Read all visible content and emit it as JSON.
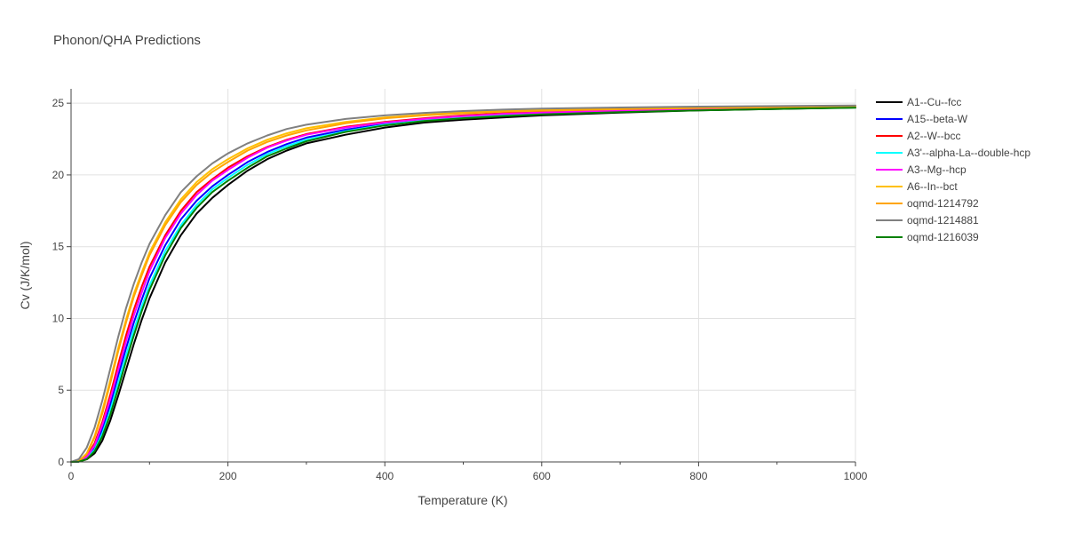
{
  "chart_data": {
    "type": "line",
    "title": "Phonon/QHA Predictions",
    "xlabel": "Temperature (K)",
    "ylabel": "Cv (J/K/mol)",
    "xlim": [
      0,
      1000
    ],
    "ylim": [
      0,
      26
    ],
    "xticks": [
      0,
      200,
      400,
      600,
      800,
      1000
    ],
    "yticks": [
      0,
      5,
      10,
      15,
      20,
      25
    ],
    "x_minor_ticks": [
      100,
      300,
      500,
      700,
      900
    ],
    "grid": true,
    "legend_position": "right",
    "x": [
      0,
      10,
      20,
      30,
      40,
      50,
      60,
      70,
      80,
      90,
      100,
      120,
      140,
      160,
      180,
      200,
      225,
      250,
      275,
      300,
      350,
      400,
      450,
      500,
      550,
      600,
      700,
      800,
      900,
      1000
    ],
    "series": [
      {
        "name": "A1--Cu--fcc",
        "color": "#000000",
        "values": [
          0,
          0.02,
          0.18,
          0.6,
          1.5,
          2.9,
          4.6,
          6.4,
          8.2,
          9.9,
          11.4,
          13.9,
          15.8,
          17.3,
          18.4,
          19.3,
          20.3,
          21.1,
          21.7,
          22.2,
          22.8,
          23.3,
          23.65,
          23.85,
          24.0,
          24.15,
          24.35,
          24.5,
          24.6,
          24.7
        ]
      },
      {
        "name": "A15--beta-W",
        "color": "#0000ff",
        "values": [
          0,
          0.03,
          0.3,
          1.0,
          2.3,
          4.0,
          6.0,
          7.9,
          9.7,
          11.3,
          12.8,
          15.1,
          16.9,
          18.2,
          19.2,
          20.0,
          20.9,
          21.6,
          22.15,
          22.6,
          23.15,
          23.55,
          23.85,
          24.05,
          24.2,
          24.3,
          24.45,
          24.55,
          24.65,
          24.72
        ]
      },
      {
        "name": "A2--W--bcc",
        "color": "#ff0000",
        "values": [
          0,
          0.04,
          0.4,
          1.3,
          2.8,
          4.7,
          6.8,
          8.8,
          10.6,
          12.2,
          13.6,
          15.8,
          17.5,
          18.8,
          19.7,
          20.5,
          21.3,
          21.95,
          22.45,
          22.85,
          23.35,
          23.7,
          23.95,
          24.15,
          24.3,
          24.4,
          24.5,
          24.6,
          24.68,
          24.74
        ]
      },
      {
        "name": "A3'--alpha-La--double-hcp",
        "color": "#00ffff",
        "values": [
          0,
          0.03,
          0.25,
          0.85,
          2.0,
          3.6,
          5.5,
          7.4,
          9.2,
          10.8,
          12.3,
          14.7,
          16.5,
          17.9,
          19.0,
          19.8,
          20.7,
          21.45,
          22.0,
          22.45,
          23.05,
          23.5,
          23.8,
          24.0,
          24.15,
          24.28,
          24.42,
          24.54,
          24.63,
          24.7
        ]
      },
      {
        "name": "A3--Mg--hcp",
        "color": "#ff00ff",
        "values": [
          0,
          0.04,
          0.35,
          1.15,
          2.6,
          4.4,
          6.4,
          8.4,
          10.2,
          11.8,
          13.3,
          15.6,
          17.3,
          18.6,
          19.6,
          20.35,
          21.2,
          21.9,
          22.4,
          22.8,
          23.3,
          23.65,
          23.9,
          24.1,
          24.25,
          24.35,
          24.48,
          24.58,
          24.66,
          24.72
        ]
      },
      {
        "name": "A6--In--bct",
        "color": "#ffc000",
        "values": [
          0,
          0.06,
          0.6,
          1.8,
          3.6,
          5.7,
          7.9,
          9.9,
          11.7,
          13.2,
          14.6,
          16.7,
          18.3,
          19.5,
          20.4,
          21.1,
          21.85,
          22.45,
          22.9,
          23.25,
          23.7,
          24.0,
          24.2,
          24.35,
          24.45,
          24.52,
          24.6,
          24.68,
          24.73,
          24.78
        ]
      },
      {
        "name": "oqmd-1214792",
        "color": "#ffa500",
        "values": [
          0,
          0.05,
          0.55,
          1.7,
          3.4,
          5.5,
          7.7,
          9.7,
          11.5,
          13.0,
          14.4,
          16.5,
          18.1,
          19.3,
          20.2,
          20.9,
          21.7,
          22.3,
          22.75,
          23.1,
          23.6,
          23.95,
          24.15,
          24.3,
          24.4,
          24.48,
          24.58,
          24.66,
          24.72,
          24.77
        ]
      },
      {
        "name": "oqmd-1214881",
        "color": "#808080",
        "values": [
          0,
          0.2,
          1.0,
          2.4,
          4.3,
          6.5,
          8.7,
          10.7,
          12.4,
          13.9,
          15.2,
          17.2,
          18.8,
          19.9,
          20.8,
          21.5,
          22.2,
          22.75,
          23.2,
          23.5,
          23.9,
          24.15,
          24.32,
          24.45,
          24.55,
          24.62,
          24.7,
          24.76,
          24.8,
          24.84
        ]
      },
      {
        "name": "oqmd-1216039",
        "color": "#008000",
        "values": [
          0,
          0.02,
          0.2,
          0.75,
          1.8,
          3.3,
          5.1,
          7.0,
          8.8,
          10.5,
          12.0,
          14.4,
          16.3,
          17.7,
          18.8,
          19.6,
          20.5,
          21.3,
          21.85,
          22.35,
          23.0,
          23.45,
          23.75,
          23.95,
          24.1,
          24.22,
          24.38,
          24.5,
          24.6,
          24.68
        ]
      }
    ]
  }
}
